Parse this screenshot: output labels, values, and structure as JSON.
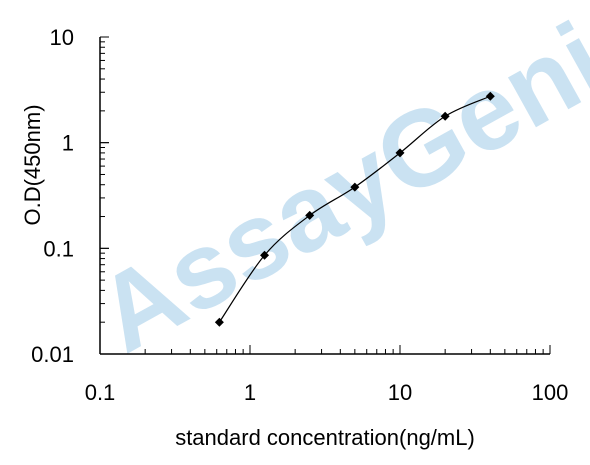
{
  "chart_data": {
    "type": "scatter",
    "series": [
      {
        "x": [
          0.625,
          1.25,
          2.5,
          5,
          10,
          20,
          40
        ],
        "y": [
          0.02,
          0.086,
          0.205,
          0.38,
          0.8,
          1.78,
          2.75
        ]
      }
    ],
    "x_scale": "log",
    "y_scale": "log",
    "xlim": [
      0.1,
      100
    ],
    "ylim": [
      0.01,
      10
    ],
    "xticks": [
      "0.1",
      "1",
      "10",
      "100"
    ],
    "yticks": [
      "10",
      "1",
      "0.1",
      "0.01"
    ],
    "xlabel": "standard concentration(ng/mL)",
    "ylabel": "O.D(450nm)",
    "line": "smooth",
    "marker": "diamond",
    "grid": false,
    "watermark": "AssayGenie",
    "colors": {
      "line": "#000000",
      "marker": "#000000",
      "watermark": "#9fcbe8"
    }
  }
}
